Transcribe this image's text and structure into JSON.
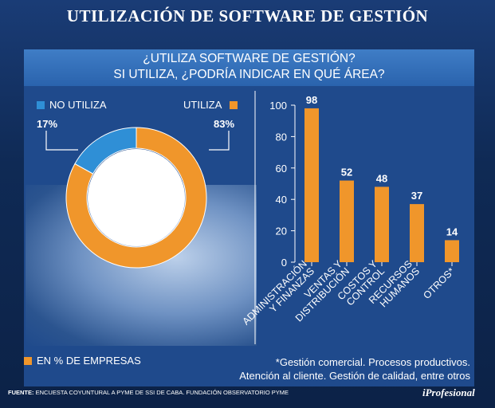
{
  "title": "UTILIZACIÓN DE SOFTWARE DE GESTIÓN",
  "question": {
    "line1": "¿UTILIZA SOFTWARE DE GESTIÓN?",
    "line2": "SI UTILIZA, ¿PODRÍA INDICAR EN QUÉ ÁREA?"
  },
  "legend": {
    "unit_label": "EN % DE EMPRESAS"
  },
  "note": {
    "line1": "*Gestión comercial. Procesos productivos.",
    "line2": "Atención al cliente. Gestión de calidad, entre otros"
  },
  "footer": {
    "label": "FUENTE:",
    "text": "ENCUESTA COYUNTURAL A PYME DE SSI DE CABA. FUNDACIÓN OBSERVATORIO PYME"
  },
  "brand": "iProfesional",
  "colors": {
    "orange": "#f0962b",
    "blue": "#2f8fd6"
  },
  "chart_data": [
    {
      "type": "pie",
      "title": "¿UTILIZA SOFTWARE DE GESTIÓN?",
      "categories": [
        "NO UTILIZA",
        "UTILIZA"
      ],
      "values": [
        17,
        83
      ],
      "value_labels": [
        "17%",
        "83%"
      ],
      "donut": true
    },
    {
      "type": "bar",
      "title": "SI UTILIZA, ¿PODRÍA INDICAR EN QUÉ ÁREA?",
      "categories": [
        [
          "ADMINISTRACIÓN",
          "Y FINANZAS"
        ],
        [
          "VENTAS Y",
          "DISTRIBUCIÓN"
        ],
        [
          "COSTOS Y",
          "CONTROL"
        ],
        [
          "RECURSOS",
          "HUMANOS"
        ],
        [
          "OTROS*"
        ]
      ],
      "values": [
        98,
        52,
        48,
        37,
        14
      ],
      "yticks": [
        "0",
        "20",
        "40",
        "60",
        "80",
        "100"
      ],
      "ylim": [
        0,
        100
      ],
      "xlabel": "",
      "ylabel": ""
    }
  ]
}
